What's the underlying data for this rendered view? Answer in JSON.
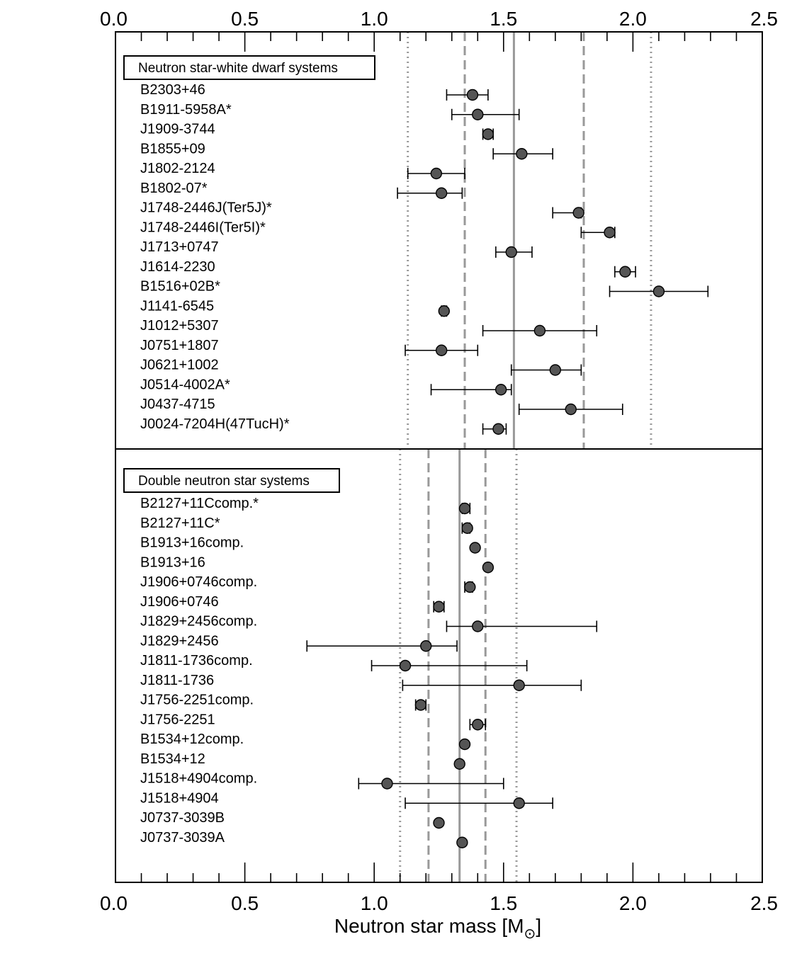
{
  "chart_data": {
    "type": "scatter",
    "xlabel": "Neutron star mass [M",
    "xlabel_sub": "⊙",
    "xlabel_suffix": "]",
    "xlim": [
      0.0,
      2.5
    ],
    "x_ticks": [
      "0.0",
      "0.5",
      "1.0",
      "1.5",
      "2.0",
      "2.5"
    ],
    "grid": false,
    "panels": [
      {
        "title": "Neutron star-white dwarf systems",
        "mean_line": 1.54,
        "dashed_lines": [
          1.35,
          1.81
        ],
        "dotted_lines": [
          1.13,
          2.07
        ],
        "points": [
          {
            "name": "B2303+46",
            "mass": 1.38,
            "err_low": 1.28,
            "err_high": 1.44
          },
          {
            "name": "B1911-5958A*",
            "mass": 1.4,
            "err_low": 1.3,
            "err_high": 1.56
          },
          {
            "name": "J1909-3744",
            "mass": 1.44,
            "err_low": 1.42,
            "err_high": 1.46
          },
          {
            "name": "B1855+09",
            "mass": 1.57,
            "err_low": 1.46,
            "err_high": 1.69
          },
          {
            "name": "J1802-2124",
            "mass": 1.24,
            "err_low": 1.13,
            "err_high": 1.35
          },
          {
            "name": "B1802-07*",
            "mass": 1.26,
            "err_low": 1.09,
            "err_high": 1.34
          },
          {
            "name": "J1748-2446J(Ter5J)*",
            "mass": 1.79,
            "err_low": 1.69,
            "err_high": 1.8
          },
          {
            "name": "J1748-2446I(Ter5I)*",
            "mass": 1.91,
            "err_low": 1.8,
            "err_high": 1.93
          },
          {
            "name": "J1713+0747",
            "mass": 1.53,
            "err_low": 1.47,
            "err_high": 1.61
          },
          {
            "name": "J1614-2230",
            "mass": 1.97,
            "err_low": 1.93,
            "err_high": 2.01
          },
          {
            "name": "B1516+02B*",
            "mass": 2.1,
            "err_low": 1.91,
            "err_high": 2.29
          },
          {
            "name": "J1141-6545",
            "mass": 1.27,
            "err_low": 1.26,
            "err_high": 1.28
          },
          {
            "name": "J1012+5307",
            "mass": 1.64,
            "err_low": 1.42,
            "err_high": 1.86
          },
          {
            "name": "J0751+1807",
            "mass": 1.26,
            "err_low": 1.12,
            "err_high": 1.4
          },
          {
            "name": "J0621+1002",
            "mass": 1.7,
            "err_low": 1.53,
            "err_high": 1.8
          },
          {
            "name": "J0514-4002A*",
            "mass": 1.49,
            "err_low": 1.22,
            "err_high": 1.53
          },
          {
            "name": "J0437-4715",
            "mass": 1.76,
            "err_low": 1.56,
            "err_high": 1.96
          },
          {
            "name": "J0024-7204H(47TucH)*",
            "mass": 1.48,
            "err_low": 1.42,
            "err_high": 1.51
          }
        ]
      },
      {
        "title": "Double neutron star systems",
        "mean_line": 1.33,
        "dashed_lines": [
          1.21,
          1.43
        ],
        "dotted_lines": [
          1.1,
          1.55
        ],
        "points": [
          {
            "name": "B2127+11Ccomp.*",
            "mass": 1.35,
            "err_low": 1.34,
            "err_high": 1.37
          },
          {
            "name": "B2127+11C*",
            "mass": 1.36,
            "err_low": 1.34,
            "err_high": 1.37
          },
          {
            "name": "B1913+16comp.",
            "mass": 1.39,
            "err_low": 1.39,
            "err_high": 1.39
          },
          {
            "name": "B1913+16",
            "mass": 1.44,
            "err_low": 1.44,
            "err_high": 1.44
          },
          {
            "name": "J1906+0746comp.",
            "mass": 1.37,
            "err_low": 1.35,
            "err_high": 1.38
          },
          {
            "name": "J1906+0746",
            "mass": 1.25,
            "err_low": 1.23,
            "err_high": 1.27
          },
          {
            "name": "J1829+2456comp.",
            "mass": 1.4,
            "err_low": 1.28,
            "err_high": 1.86
          },
          {
            "name": "J1829+2456",
            "mass": 1.2,
            "err_low": 0.74,
            "err_high": 1.32
          },
          {
            "name": "J1811-1736comp.",
            "mass": 1.12,
            "err_low": 0.99,
            "err_high": 1.59
          },
          {
            "name": "J1811-1736",
            "mass": 1.56,
            "err_low": 1.11,
            "err_high": 1.8
          },
          {
            "name": "J1756-2251comp.",
            "mass": 1.18,
            "err_low": 1.16,
            "err_high": 1.2
          },
          {
            "name": "J1756-2251",
            "mass": 1.4,
            "err_low": 1.37,
            "err_high": 1.43
          },
          {
            "name": "B1534+12comp.",
            "mass": 1.35,
            "err_low": 1.35,
            "err_high": 1.35
          },
          {
            "name": "B1534+12",
            "mass": 1.33,
            "err_low": 1.33,
            "err_high": 1.33
          },
          {
            "name": "J1518+4904comp.",
            "mass": 1.05,
            "err_low": 0.94,
            "err_high": 1.5
          },
          {
            "name": "J1518+4904",
            "mass": 1.56,
            "err_low": 1.12,
            "err_high": 1.69
          },
          {
            "name": "J0737-3039B",
            "mass": 1.25,
            "err_low": 1.25,
            "err_high": 1.25
          },
          {
            "name": "J0737-3039A",
            "mass": 1.34,
            "err_low": 1.34,
            "err_high": 1.34
          }
        ]
      }
    ]
  }
}
